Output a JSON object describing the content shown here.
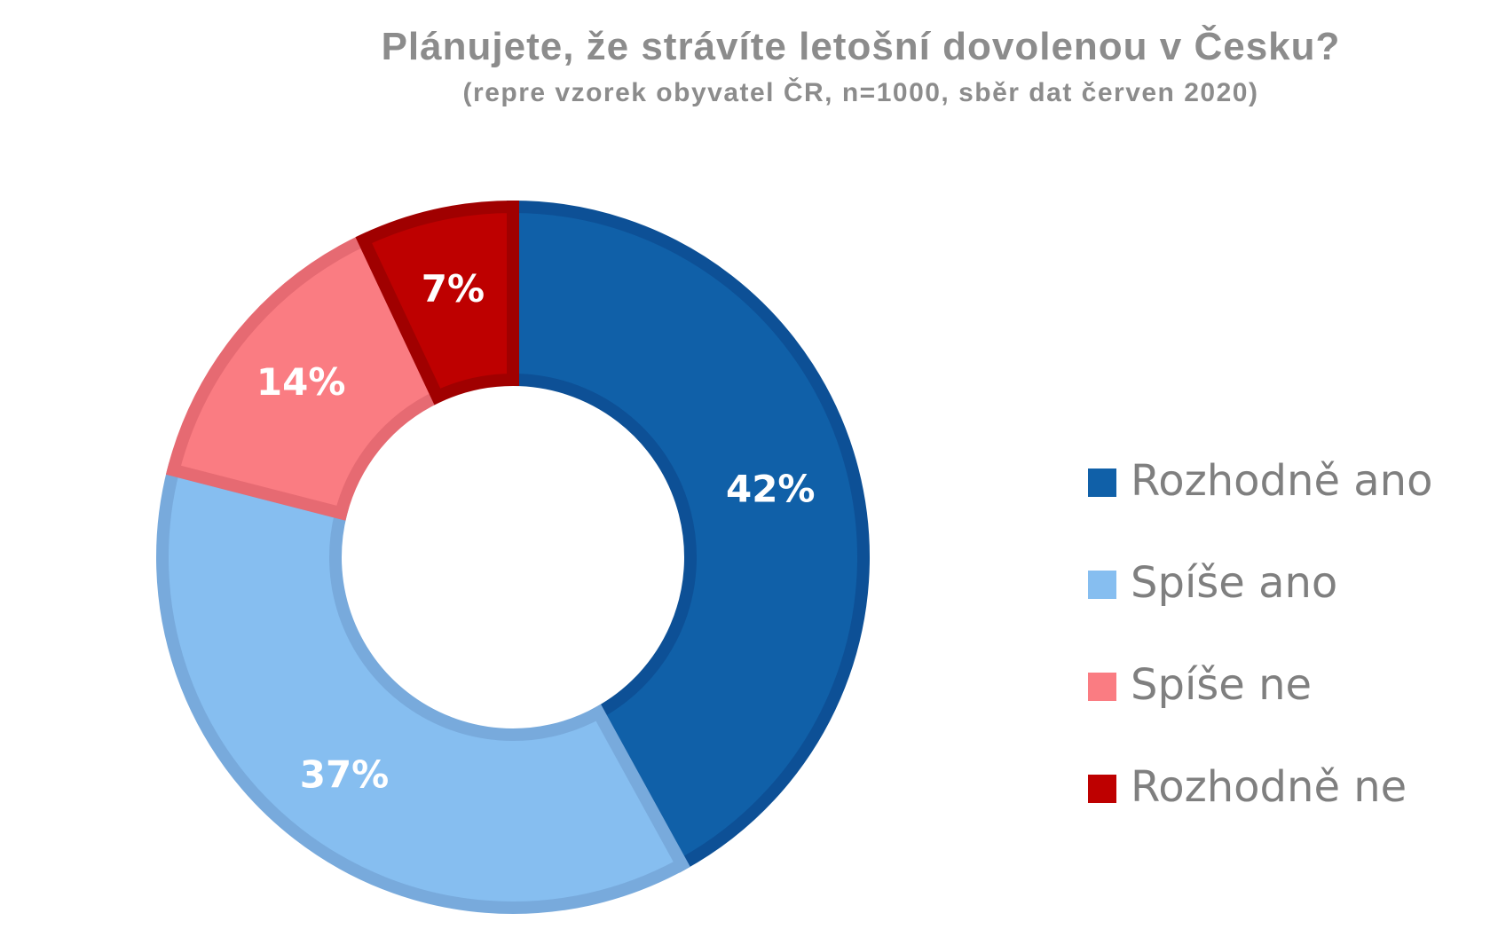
{
  "chart_data": {
    "type": "pie",
    "variant": "donut",
    "title": "Plánujete, že strávíte letošní dovolenou v Česku?",
    "subtitle": "(repre vzorek obyvatel ČR, n=1000, sběr dat červen 2020)",
    "categories": [
      "Rozhodně ano",
      "Spíše ano",
      "Spíše ne",
      "Rozhodně ne"
    ],
    "values": [
      42,
      37,
      14,
      7
    ],
    "data_labels": [
      "42%",
      "37%",
      "14%",
      "7%"
    ],
    "colors": [
      "#1060A8",
      "#86BEF0",
      "#FA7C82",
      "#BE0000"
    ],
    "border_colors": [
      "#0D5096",
      "#78AADC",
      "#E66A72",
      "#A00000"
    ],
    "legend_position": "right"
  }
}
